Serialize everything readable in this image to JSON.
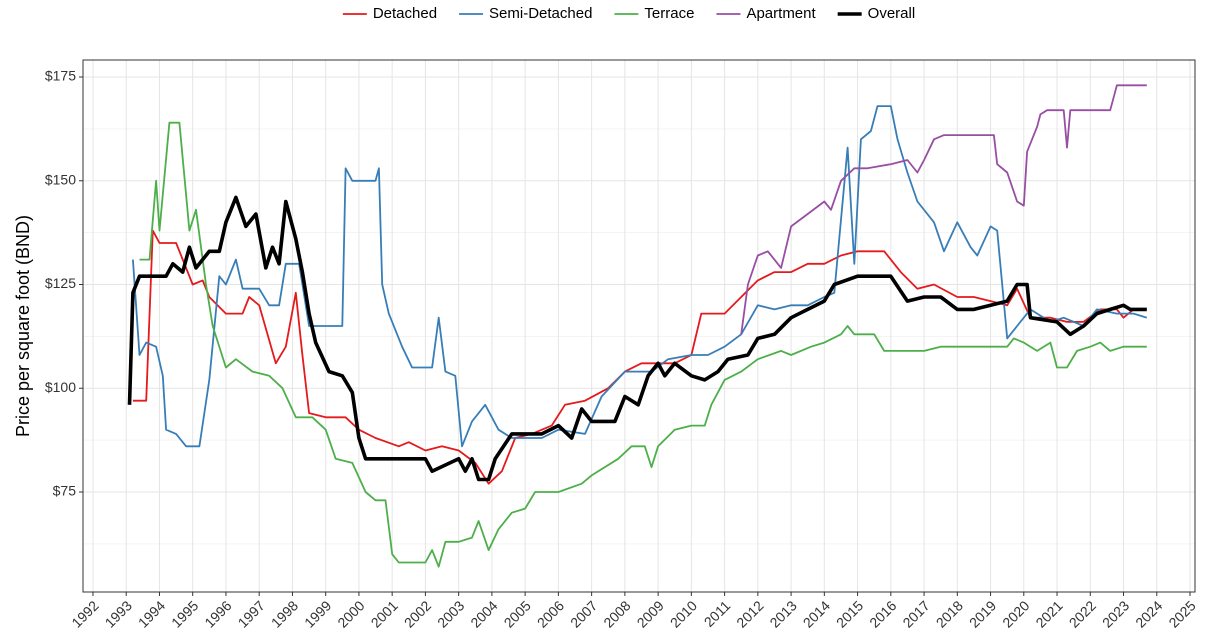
{
  "chart_data": {
    "type": "line",
    "ylabel": "Price per square foot (BND)",
    "legend": "top",
    "grid": true,
    "xlim": [
      1991.7,
      2025.15
    ],
    "ylim": [
      50.9,
      179.1
    ],
    "xticks": [
      1992,
      1993,
      1994,
      1995,
      1996,
      1997,
      1998,
      1999,
      2000,
      2001,
      2002,
      2003,
      2004,
      2005,
      2006,
      2007,
      2008,
      2009,
      2010,
      2011,
      2012,
      2013,
      2014,
      2015,
      2016,
      2017,
      2018,
      2019,
      2020,
      2021,
      2022,
      2023,
      2024,
      2025
    ],
    "yticks": [
      {
        "value": 75,
        "label": "$75"
      },
      {
        "value": 100,
        "label": "$100"
      },
      {
        "value": 125,
        "label": "$125"
      },
      {
        "value": 150,
        "label": "$150"
      },
      {
        "value": 175,
        "label": "$175"
      }
    ],
    "yminor": [
      62.5,
      87.5,
      112.5,
      137.5,
      162.5
    ],
    "series": [
      {
        "name": "Detached",
        "color": "#e41a1c",
        "line_width": 1.8,
        "x": [
          1993.2,
          1993.6,
          1993.8,
          1994,
          1994.5,
          1995,
          1995.3,
          1995.5,
          1996,
          1996.5,
          1996.7,
          1997,
          1997.5,
          1997.8,
          1998.1,
          1998.3,
          1998.5,
          1999,
          1999.6,
          2000,
          2000.5,
          2001.2,
          2001.5,
          2002,
          2002.5,
          2003,
          2003.5,
          2003.9,
          2004.3,
          2004.7,
          2005.2,
          2005.8,
          2006.2,
          2006.8,
          2007.5,
          2008,
          2008.5,
          2009,
          2009.5,
          2010,
          2010.3,
          2011,
          2011.5,
          2012,
          2012.5,
          2013,
          2013.5,
          2014,
          2014.5,
          2015,
          2015.8,
          2016.3,
          2016.8,
          2017.3,
          2018,
          2018.5,
          2019,
          2019.5,
          2019.8,
          2020.2,
          2020.8,
          2021.3,
          2021.8,
          2022.3,
          2022.8,
          2023,
          2023.3,
          2023.7
        ],
        "values": [
          97,
          97,
          138,
          135,
          135,
          125,
          126,
          122,
          118,
          118,
          122,
          120,
          106,
          110,
          123,
          108,
          94,
          93,
          93,
          90,
          88,
          86,
          87,
          85,
          86,
          85,
          82,
          77,
          80,
          88,
          89,
          91,
          96,
          97,
          100,
          104,
          106,
          106,
          106,
          108,
          118,
          118,
          122,
          126,
          128,
          128,
          130,
          130,
          132,
          133,
          133,
          128,
          124,
          125,
          122,
          122,
          121,
          120,
          124,
          117,
          117,
          116,
          116,
          119,
          119,
          117,
          119,
          119
        ]
      },
      {
        "name": "Semi-Detached",
        "color": "#377eb8",
        "line_width": 1.8,
        "x": [
          1993.2,
          1993.4,
          1993.6,
          1993.9,
          1994.1,
          1994.2,
          1994.5,
          1994.8,
          1995.2,
          1995.5,
          1995.8,
          1996,
          1996.3,
          1996.5,
          1997,
          1997.3,
          1997.6,
          1997.8,
          1998.2,
          1998.5,
          1999,
          1999.5,
          1999.6,
          1999.8,
          2000.5,
          2000.6,
          2000.7,
          2000.9,
          2001.3,
          2001.6,
          2002.2,
          2002.4,
          2002.6,
          2002.9,
          2003.1,
          2003.4,
          2003.8,
          2004.2,
          2004.6,
          2005.5,
          2006,
          2006.8,
          2007.3,
          2008,
          2008.8,
          2009.3,
          2010,
          2010.5,
          2011,
          2011.5,
          2012,
          2012.5,
          2013,
          2013.5,
          2014,
          2014.3,
          2014.7,
          2014.9,
          2015.1,
          2015.4,
          2015.6,
          2016,
          2016.2,
          2016.5,
          2016.8,
          2017.3,
          2017.6,
          2018,
          2018.4,
          2018.6,
          2019,
          2019.2,
          2019.5,
          2019.8,
          2020.2,
          2020.8,
          2021.2,
          2021.8,
          2022.2,
          2022.8,
          2023.3,
          2023.7
        ],
        "values": [
          131,
          108,
          111,
          110,
          103,
          90,
          89,
          86,
          86,
          102,
          127,
          125,
          131,
          124,
          124,
          120,
          120,
          130,
          130,
          115,
          115,
          115,
          153,
          150,
          150,
          153,
          125,
          118,
          110,
          105,
          105,
          117,
          104,
          103,
          86,
          92,
          96,
          90,
          88,
          88,
          90,
          89,
          98,
          104,
          104,
          107,
          108,
          108,
          110,
          113,
          120,
          119,
          120,
          120,
          122,
          123,
          158,
          130,
          160,
          162,
          168,
          168,
          160,
          152,
          145,
          140,
          133,
          140,
          134,
          132,
          139,
          138,
          112,
          115,
          119,
          116,
          117,
          115,
          119,
          118,
          118,
          117
        ]
      },
      {
        "name": "Terrace",
        "color": "#4daf4a",
        "line_width": 1.8,
        "x": [
          1993.4,
          1993.7,
          1993.9,
          1994,
          1994.3,
          1994.6,
          1994.9,
          1995.1,
          1995.4,
          1995.6,
          1996,
          1996.3,
          1996.8,
          1997.3,
          1997.7,
          1998.1,
          1998.6,
          1999,
          1999.3,
          1999.8,
          2000.2,
          2000.5,
          2000.8,
          2001,
          2001.2,
          2002,
          2002.2,
          2002.4,
          2002.6,
          2003,
          2003.4,
          2003.6,
          2003.9,
          2004.2,
          2004.6,
          2005,
          2005.3,
          2006,
          2006.7,
          2007,
          2007.8,
          2008.2,
          2008.6,
          2008.8,
          2009,
          2009.5,
          2010,
          2010.4,
          2010.6,
          2011,
          2011.5,
          2012,
          2012.7,
          2013,
          2013.6,
          2014,
          2014.5,
          2014.7,
          2014.9,
          2015.5,
          2015.8,
          2016.3,
          2017,
          2017.5,
          2019,
          2019.5,
          2019.7,
          2020,
          2020.4,
          2020.8,
          2021,
          2021.3,
          2021.6,
          2022,
          2022.3,
          2022.6,
          2023,
          2023.3,
          2023.7
        ],
        "values": [
          131,
          131,
          150,
          138,
          164,
          164,
          138,
          143,
          125,
          115,
          105,
          107,
          104,
          103,
          100,
          93,
          93,
          90,
          83,
          82,
          75,
          73,
          73,
          60,
          58,
          58,
          61,
          57,
          63,
          63,
          64,
          68,
          61,
          66,
          70,
          71,
          75,
          75,
          77,
          79,
          83,
          86,
          86,
          81,
          86,
          90,
          91,
          91,
          96,
          102,
          104,
          107,
          109,
          108,
          110,
          111,
          113,
          115,
          113,
          113,
          109,
          109,
          109,
          110,
          110,
          110,
          112,
          111,
          109,
          111,
          105,
          105,
          109,
          110,
          111,
          109,
          110,
          110,
          110
        ]
      },
      {
        "name": "Apartment",
        "color": "#984ea3",
        "line_width": 1.8,
        "x": [
          2011.5,
          2011.7,
          2012,
          2012.3,
          2012.7,
          2013,
          2013.5,
          2014,
          2014.2,
          2014.5,
          2014.9,
          2015.3,
          2016,
          2016.5,
          2016.8,
          2017,
          2017.3,
          2017.6,
          2019.1,
          2019.2,
          2019.5,
          2019.8,
          2020,
          2020.1,
          2020.4,
          2020.5,
          2020.7,
          2021.2,
          2021.3,
          2021.4,
          2022.6,
          2022.8,
          2023.7
        ],
        "values": [
          113,
          125,
          132,
          133,
          129,
          139,
          142,
          145,
          143,
          150,
          153,
          153,
          154,
          155,
          152,
          155,
          160,
          161,
          161,
          154,
          152,
          145,
          144,
          157,
          163,
          166,
          167,
          167,
          158,
          167,
          167,
          173,
          173
        ]
      },
      {
        "name": "Overall",
        "color": "#000000",
        "line_width": 3.6,
        "x": [
          1993.1,
          1993.2,
          1993.4,
          1994.2,
          1994.4,
          1994.7,
          1994.9,
          1995.1,
          1995.5,
          1995.8,
          1996,
          1996.3,
          1996.6,
          1996.9,
          1997.2,
          1997.4,
          1997.6,
          1997.8,
          1998.1,
          1998.3,
          1998.5,
          1998.7,
          1999.1,
          1999.5,
          1999.8,
          2000,
          2000.2,
          2002,
          2002.2,
          2003,
          2003.2,
          2003.4,
          2003.6,
          2003.9,
          2004.1,
          2004.6,
          2005.5,
          2006,
          2006.4,
          2006.7,
          2007,
          2007.7,
          2008,
          2008.4,
          2008.7,
          2009,
          2009.2,
          2009.5,
          2010,
          2010.4,
          2010.8,
          2011.1,
          2011.7,
          2012,
          2012.5,
          2013,
          2013.5,
          2014,
          2014.3,
          2015,
          2016,
          2016.5,
          2017,
          2017.5,
          2018,
          2018.5,
          2019,
          2019.5,
          2019.8,
          2020.1,
          2020.2,
          2021,
          2021.4,
          2021.8,
          2022.2,
          2022.6,
          2023,
          2023.2,
          2023.7
        ],
        "values": [
          96,
          123,
          127,
          127,
          130,
          128,
          134,
          129,
          133,
          133,
          140,
          146,
          139,
          142,
          129,
          134,
          130,
          145,
          136,
          128,
          118,
          111,
          104,
          103,
          99,
          88,
          83,
          83,
          80,
          83,
          80,
          83,
          78,
          78,
          83,
          89,
          89,
          91,
          88,
          95,
          92,
          92,
          98,
          96,
          103,
          106,
          103,
          106,
          103,
          102,
          104,
          107,
          108,
          112,
          113,
          117,
          119,
          121,
          125,
          127,
          127,
          121,
          122,
          122,
          119,
          119,
          120,
          121,
          125,
          125,
          117,
          116,
          113,
          115,
          118,
          119,
          120,
          119,
          119
        ]
      }
    ]
  }
}
